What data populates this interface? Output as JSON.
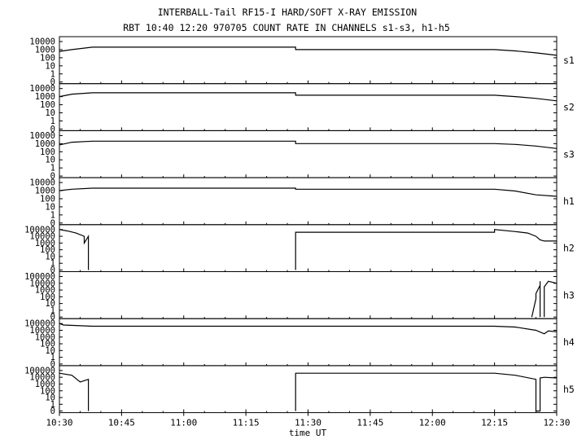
{
  "chart_data": {
    "type": "line",
    "title": "INTERBALL-Tail RF15-I HARD/SOFT X-RAY EMISSION",
    "subtitle": "RBT 10:40 12:20 970705  COUNT RATE IN CHANNELS s1-s3, h1-h5",
    "xlabel": "time UT",
    "x_ticks": [
      "10:30",
      "10:45",
      "11:00",
      "11:15",
      "11:30",
      "11:45",
      "12:00",
      "12:15",
      "12:30"
    ],
    "xlim": [
      "10:30",
      "12:30"
    ],
    "yscale": "log",
    "panels": [
      {
        "name": "s1",
        "y_ticks": [
          "10000",
          "1000",
          "100",
          "10",
          "1",
          "0"
        ],
        "series": [
          [
            [
              "10:30",
              600
            ],
            [
              "10:33",
              1000
            ],
            [
              "10:38",
              2000
            ],
            [
              "11:27",
              2000
            ],
            [
              "11:27",
              1000
            ],
            [
              "12:15",
              1000
            ],
            [
              "12:20",
              700
            ],
            [
              "12:25",
              400
            ],
            [
              "12:30",
              200
            ]
          ]
        ]
      },
      {
        "name": "s2",
        "y_ticks": [
          "10000",
          "1000",
          "100",
          "10",
          "1",
          "0"
        ],
        "series": [
          [
            [
              "10:30",
              1000
            ],
            [
              "10:33",
              2000
            ],
            [
              "10:38",
              3000
            ],
            [
              "11:27",
              3000
            ],
            [
              "11:27",
              1500
            ],
            [
              "12:15",
              1500
            ],
            [
              "12:20",
              1000
            ],
            [
              "12:25",
              600
            ],
            [
              "12:30",
              300
            ]
          ]
        ]
      },
      {
        "name": "s3",
        "y_ticks": [
          "10000",
          "1000",
          "100",
          "10",
          "1",
          "0"
        ],
        "series": [
          [
            [
              "10:30",
              700
            ],
            [
              "10:33",
              1500
            ],
            [
              "10:38",
              2000
            ],
            [
              "11:27",
              2000
            ],
            [
              "11:27",
              1000
            ],
            [
              "12:15",
              1000
            ],
            [
              "12:20",
              800
            ],
            [
              "12:25",
              500
            ],
            [
              "12:30",
              250
            ]
          ]
        ]
      },
      {
        "name": "h1",
        "y_ticks": [
          "10000",
          "1000",
          "100",
          "10",
          "1",
          "0"
        ],
        "series": [
          [
            [
              "10:30",
              1000
            ],
            [
              "10:33",
              1500
            ],
            [
              "10:38",
              2000
            ],
            [
              "11:27",
              2000
            ],
            [
              "11:27",
              1500
            ],
            [
              "12:15",
              1500
            ],
            [
              "12:20",
              900
            ],
            [
              "12:25",
              300
            ],
            [
              "12:30",
              200
            ]
          ]
        ]
      },
      {
        "name": "h2",
        "y_ticks": [
          "100000",
          "10000",
          "1000",
          "100",
          "10",
          "1",
          "0"
        ],
        "series": [
          [
            [
              "10:30",
              100000
            ],
            [
              "10:32",
              60000
            ],
            [
              "10:34",
              30000
            ],
            [
              "10:36",
              10000
            ],
            [
              "10:36",
              1000
            ],
            [
              "10:37",
              10000
            ],
            [
              "10:37",
              0
            ]
          ],
          [
            [
              "11:27",
              0
            ],
            [
              "11:27",
              40000
            ],
            [
              "12:15",
              40000
            ],
            [
              "12:15",
              100000
            ],
            [
              "12:20",
              50000
            ],
            [
              "12:23",
              30000
            ],
            [
              "12:25",
              10000
            ],
            [
              "12:26",
              3000
            ],
            [
              "12:27",
              2000
            ],
            [
              "12:30",
              2000
            ]
          ]
        ]
      },
      {
        "name": "h3",
        "y_ticks": [
          "100000",
          "10000",
          "1000",
          "100",
          "10",
          "1",
          "0"
        ],
        "series": [
          [
            [
              "12:24",
              0
            ],
            [
              "12:25",
              50
            ],
            [
              "12:25",
              300
            ],
            [
              "12:26",
              5000
            ],
            [
              "12:26",
              50
            ],
            [
              "12:26",
              20000
            ],
            [
              "12:26",
              0
            ]
          ],
          [
            [
              "12:27",
              0
            ],
            [
              "12:27",
              3000
            ],
            [
              "12:28",
              20000
            ],
            [
              "12:30",
              10000
            ]
          ]
        ]
      },
      {
        "name": "h4",
        "y_ticks": [
          "100000",
          "10000",
          "1000",
          "100",
          "10",
          "1",
          "0"
        ],
        "series": [
          [
            [
              "10:30",
              100000
            ],
            [
              "10:31",
              60000
            ],
            [
              "10:38",
              40000
            ],
            [
              "11:27",
              40000
            ],
            [
              "12:15",
              40000
            ],
            [
              "12:20",
              30000
            ],
            [
              "12:25",
              10000
            ],
            [
              "12:27",
              3000
            ],
            [
              "12:28",
              8000
            ],
            [
              "12:30",
              6000
            ]
          ]
        ]
      },
      {
        "name": "h5",
        "y_ticks": [
          "100000",
          "10000",
          "1000",
          "100",
          "10",
          "1",
          "0"
        ],
        "series": [
          [
            [
              "10:30",
              40000
            ],
            [
              "10:33",
              20000
            ],
            [
              "10:35",
              2000
            ],
            [
              "10:37",
              5000
            ],
            [
              "10:37",
              0
            ]
          ],
          [
            [
              "11:27",
              0
            ],
            [
              "11:27",
              40000
            ],
            [
              "12:15",
              40000
            ],
            [
              "12:20",
              20000
            ],
            [
              "12:25",
              5000
            ],
            [
              "12:25",
              0
            ],
            [
              "12:26",
              0
            ],
            [
              "12:26",
              8000
            ],
            [
              "12:27",
              10000
            ],
            [
              "12:30",
              8000
            ]
          ]
        ]
      }
    ]
  }
}
